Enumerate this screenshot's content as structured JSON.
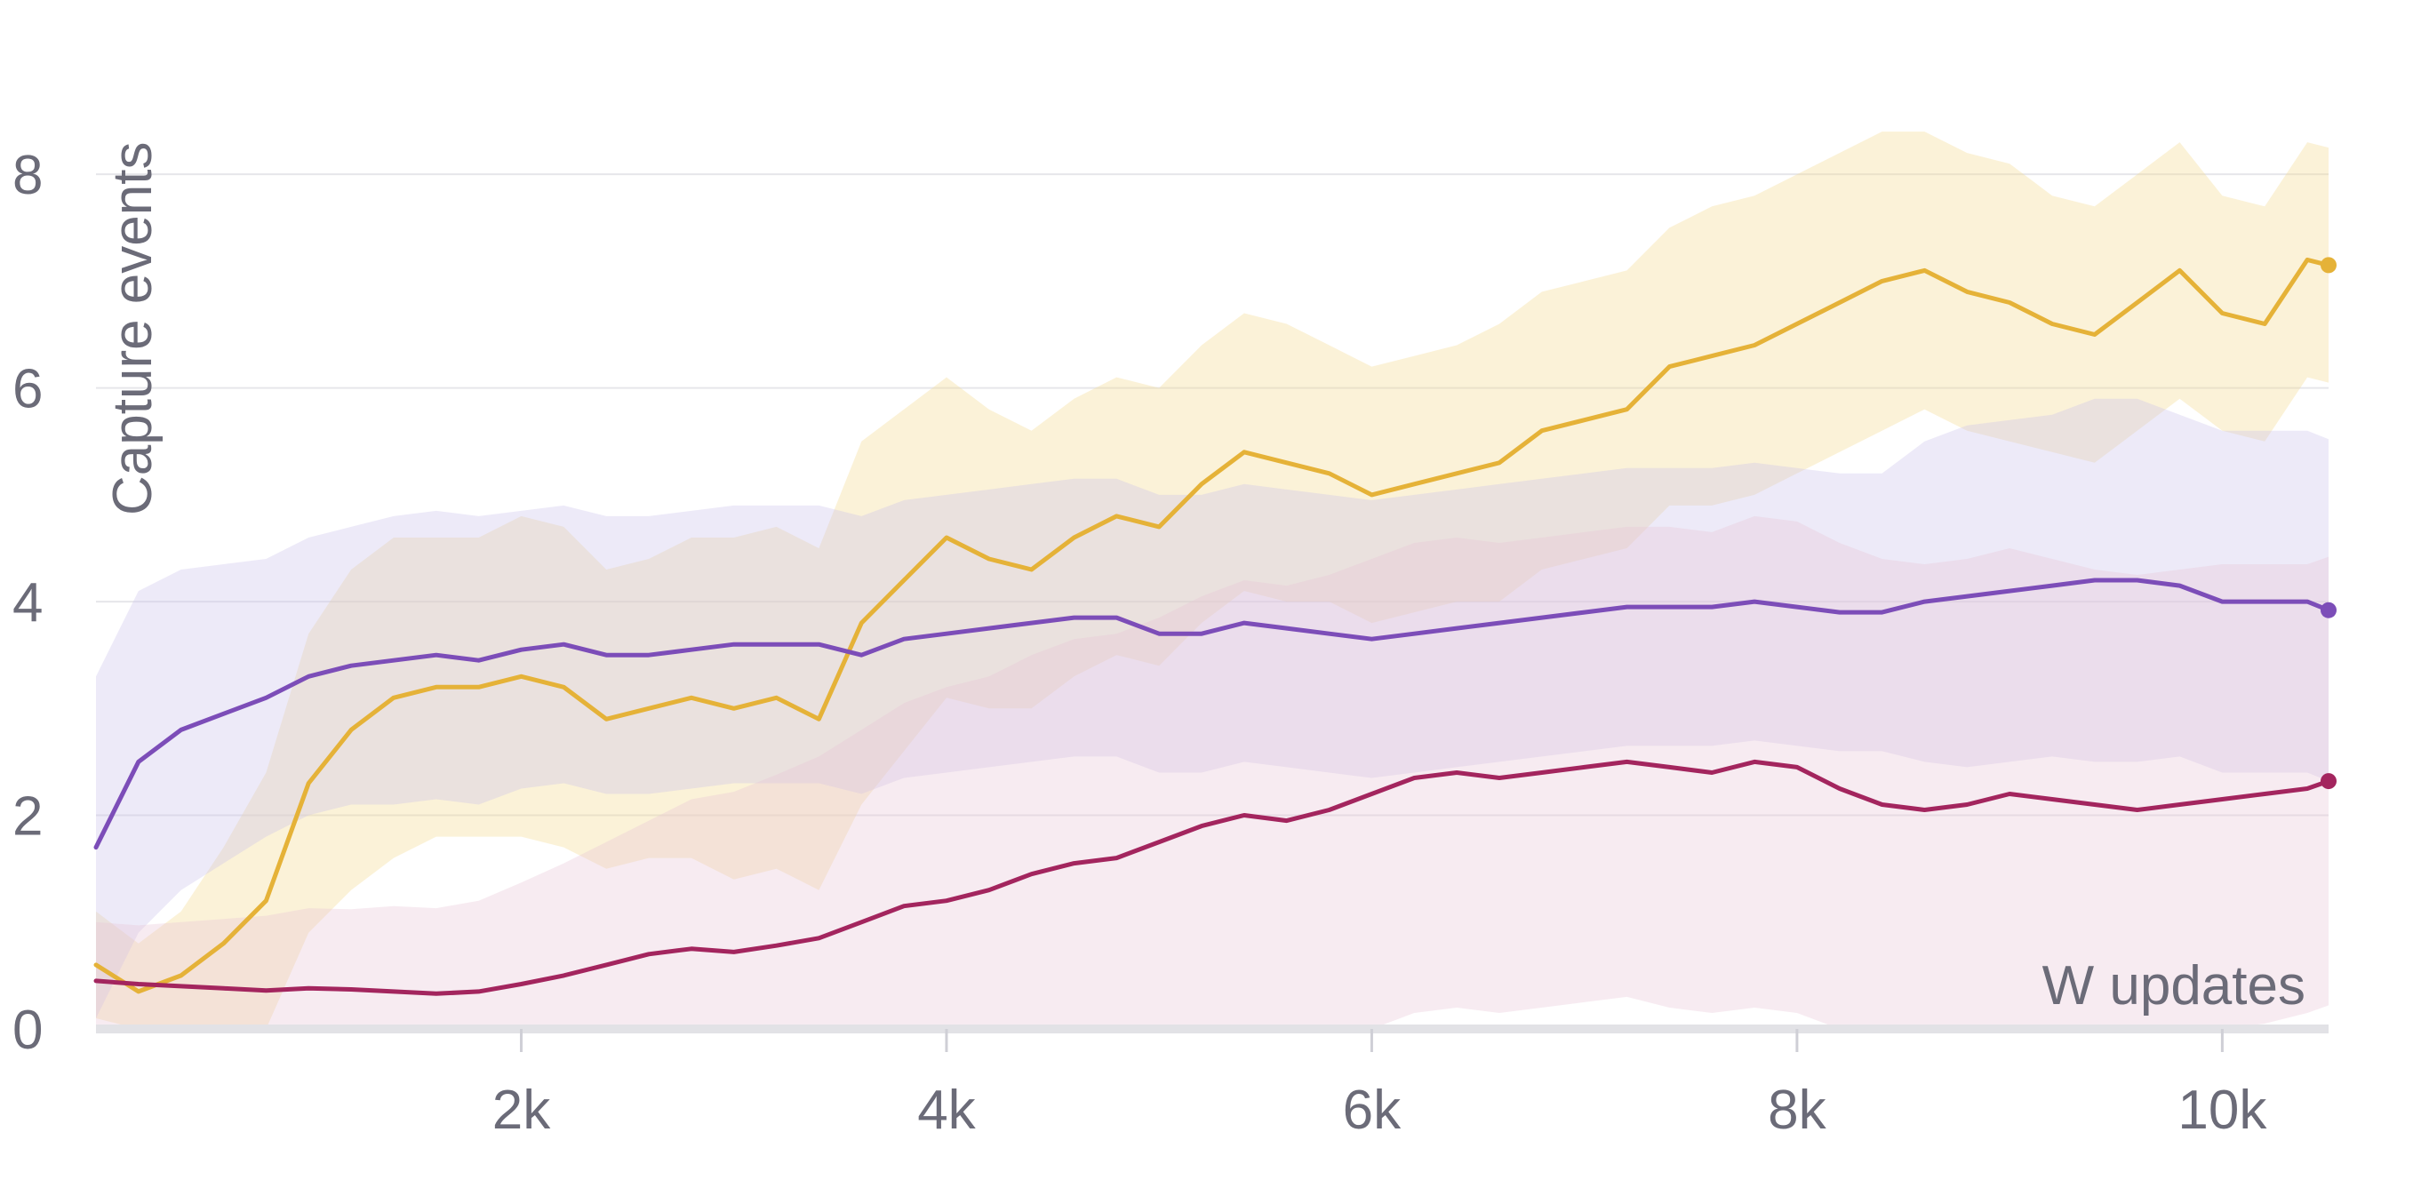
{
  "chart_data": {
    "type": "line",
    "title": "",
    "xlabel": "W updates",
    "ylabel": "Capture events",
    "xlim": [
      0,
      10500
    ],
    "ylim": [
      0,
      8.8
    ],
    "x_ticks": [
      {
        "value": 2000,
        "label": "2k"
      },
      {
        "value": 4000,
        "label": "4k"
      },
      {
        "value": 6000,
        "label": "6k"
      },
      {
        "value": 8000,
        "label": "8k"
      },
      {
        "value": 10000,
        "label": "10k"
      }
    ],
    "y_ticks": [
      {
        "value": 0,
        "label": "0"
      },
      {
        "value": 2,
        "label": "2"
      },
      {
        "value": 4,
        "label": "4"
      },
      {
        "value": 6,
        "label": "6"
      },
      {
        "value": 8,
        "label": "8"
      }
    ],
    "grid": true,
    "legend": "none",
    "series": [
      {
        "color": "#e5b238",
        "band_color": "#f3d98e",
        "x": [
          0,
          200,
          400,
          600,
          800,
          1000,
          1200,
          1400,
          1600,
          1800,
          2000,
          2200,
          2400,
          2600,
          2800,
          3000,
          3200,
          3400,
          3600,
          3800,
          4000,
          4200,
          4400,
          4600,
          4800,
          5000,
          5200,
          5400,
          5600,
          5800,
          6000,
          6200,
          6400,
          6600,
          6800,
          7000,
          7200,
          7400,
          7600,
          7800,
          8000,
          8200,
          8400,
          8600,
          8800,
          9000,
          9200,
          9400,
          9600,
          9800,
          10000,
          10200,
          10400,
          10500
        ],
        "y": [
          0.6,
          0.35,
          0.5,
          0.8,
          1.2,
          2.3,
          2.8,
          3.1,
          3.2,
          3.2,
          3.3,
          3.2,
          2.9,
          3.0,
          3.1,
          3.0,
          3.1,
          2.9,
          3.8,
          4.2,
          4.6,
          4.4,
          4.3,
          4.6,
          4.8,
          4.7,
          5.1,
          5.4,
          5.3,
          5.2,
          5.0,
          5.1,
          5.2,
          5.3,
          5.6,
          5.7,
          5.8,
          6.2,
          6.3,
          6.4,
          6.6,
          6.8,
          7.0,
          7.1,
          6.9,
          6.8,
          6.6,
          6.5,
          6.8,
          7.1,
          6.7,
          6.6,
          7.2,
          7.15
        ],
        "band": [
          0.5,
          0.45,
          0.6,
          0.9,
          1.2,
          1.4,
          1.5,
          1.5,
          1.4,
          1.4,
          1.5,
          1.5,
          1.4,
          1.4,
          1.5,
          1.6,
          1.6,
          1.6,
          1.7,
          1.6,
          1.5,
          1.4,
          1.3,
          1.3,
          1.3,
          1.3,
          1.3,
          1.3,
          1.3,
          1.2,
          1.2,
          1.2,
          1.2,
          1.3,
          1.3,
          1.3,
          1.3,
          1.3,
          1.4,
          1.4,
          1.4,
          1.4,
          1.4,
          1.3,
          1.3,
          1.3,
          1.2,
          1.2,
          1.2,
          1.2,
          1.1,
          1.1,
          1.1,
          1.1
        ]
      },
      {
        "color": "#7c4db8",
        "band_color": "#ccc3ea",
        "x": [
          0,
          200,
          400,
          600,
          800,
          1000,
          1200,
          1400,
          1600,
          1800,
          2000,
          2200,
          2400,
          2600,
          2800,
          3000,
          3200,
          3400,
          3600,
          3800,
          4000,
          4200,
          4400,
          4600,
          4800,
          5000,
          5200,
          5400,
          5600,
          5800,
          6000,
          6200,
          6400,
          6600,
          6800,
          7000,
          7200,
          7400,
          7600,
          7800,
          8000,
          8200,
          8400,
          8600,
          8800,
          9000,
          9200,
          9400,
          9600,
          9800,
          10000,
          10200,
          10400,
          10500
        ],
        "y": [
          1.7,
          2.5,
          2.8,
          2.95,
          3.1,
          3.3,
          3.4,
          3.45,
          3.5,
          3.45,
          3.55,
          3.6,
          3.5,
          3.5,
          3.55,
          3.6,
          3.6,
          3.6,
          3.5,
          3.65,
          3.7,
          3.75,
          3.8,
          3.85,
          3.85,
          3.7,
          3.7,
          3.8,
          3.75,
          3.7,
          3.65,
          3.7,
          3.75,
          3.8,
          3.85,
          3.9,
          3.95,
          3.95,
          3.95,
          4.0,
          3.95,
          3.9,
          3.9,
          4.0,
          4.05,
          4.1,
          4.15,
          4.2,
          4.2,
          4.15,
          4.0,
          4.0,
          4.0,
          3.92
        ],
        "band": [
          1.6,
          1.6,
          1.5,
          1.4,
          1.3,
          1.3,
          1.3,
          1.35,
          1.35,
          1.35,
          1.3,
          1.3,
          1.3,
          1.3,
          1.3,
          1.3,
          1.3,
          1.3,
          1.3,
          1.3,
          1.3,
          1.3,
          1.3,
          1.3,
          1.3,
          1.3,
          1.3,
          1.3,
          1.3,
          1.3,
          1.3,
          1.3,
          1.3,
          1.3,
          1.3,
          1.3,
          1.3,
          1.3,
          1.3,
          1.3,
          1.3,
          1.3,
          1.3,
          1.5,
          1.6,
          1.6,
          1.6,
          1.7,
          1.7,
          1.6,
          1.6,
          1.6,
          1.6,
          1.6
        ]
      },
      {
        "color": "#a3255e",
        "band_color": "#e9c6d6",
        "x": [
          0,
          200,
          400,
          600,
          800,
          1000,
          1200,
          1400,
          1600,
          1800,
          2000,
          2200,
          2400,
          2600,
          2800,
          3000,
          3200,
          3400,
          3600,
          3800,
          4000,
          4200,
          4400,
          4600,
          4800,
          5000,
          5200,
          5400,
          5600,
          5800,
          6000,
          6200,
          6400,
          6600,
          6800,
          7000,
          7200,
          7400,
          7600,
          7800,
          8000,
          8200,
          8400,
          8600,
          8800,
          9000,
          9200,
          9400,
          9600,
          9800,
          10000,
          10200,
          10400,
          10500
        ],
        "y": [
          0.45,
          0.42,
          0.4,
          0.38,
          0.36,
          0.38,
          0.37,
          0.35,
          0.33,
          0.35,
          0.42,
          0.5,
          0.6,
          0.7,
          0.75,
          0.72,
          0.78,
          0.85,
          1.0,
          1.15,
          1.2,
          1.3,
          1.45,
          1.55,
          1.6,
          1.75,
          1.9,
          2.0,
          1.95,
          2.05,
          2.2,
          2.35,
          2.4,
          2.35,
          2.4,
          2.45,
          2.5,
          2.45,
          2.4,
          2.5,
          2.45,
          2.25,
          2.1,
          2.05,
          2.1,
          2.2,
          2.15,
          2.1,
          2.05,
          2.1,
          2.15,
          2.2,
          2.25,
          2.32
        ],
        "band": [
          0.55,
          0.55,
          0.6,
          0.65,
          0.7,
          0.75,
          0.75,
          0.8,
          0.8,
          0.85,
          0.95,
          1.05,
          1.15,
          1.25,
          1.4,
          1.5,
          1.6,
          1.7,
          1.8,
          1.9,
          2.0,
          2.0,
          2.05,
          2.1,
          2.1,
          2.1,
          2.15,
          2.2,
          2.2,
          2.2,
          2.2,
          2.2,
          2.2,
          2.2,
          2.2,
          2.2,
          2.2,
          2.25,
          2.25,
          2.3,
          2.3,
          2.3,
          2.3,
          2.3,
          2.3,
          2.3,
          2.25,
          2.2,
          2.2,
          2.2,
          2.2,
          2.15,
          2.1,
          2.1
        ]
      }
    ]
  }
}
